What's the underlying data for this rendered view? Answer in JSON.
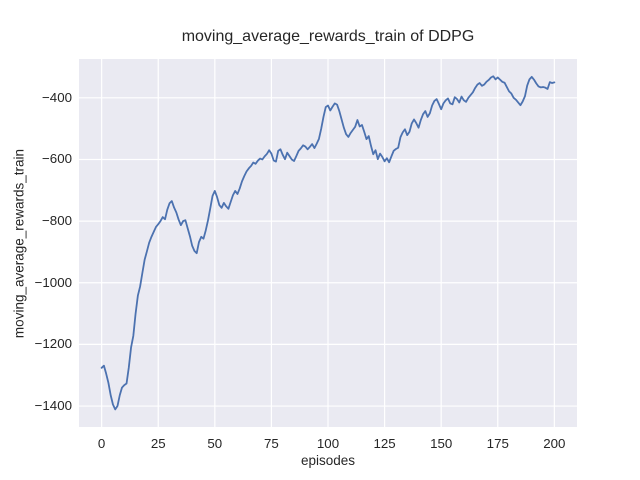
{
  "chart_data": {
    "type": "line",
    "title": "moving_average_rewards_train of DDPG",
    "xlabel": "episodes",
    "ylabel": "moving_average_rewards_train",
    "x_ticks": [
      0,
      25,
      50,
      75,
      100,
      125,
      150,
      175,
      200
    ],
    "y_ticks": [
      -400,
      -600,
      -800,
      -1000,
      -1200,
      -1400
    ],
    "xlim": [
      -10,
      210
    ],
    "ylim": [
      -1468,
      -274
    ],
    "grid": true,
    "legend": "none",
    "colors": {
      "line": "#4c72b0",
      "axes_background": "#eaeaf2",
      "grid": "#ffffff",
      "text": "#262626",
      "figure_background": "#ffffff"
    },
    "series": [
      {
        "name": "moving_average_rewards_train",
        "x_start": 0,
        "x_step": 1,
        "values": [
          -1276,
          -1269,
          -1295,
          -1325,
          -1365,
          -1395,
          -1411,
          -1400,
          -1365,
          -1340,
          -1332,
          -1327,
          -1275,
          -1210,
          -1172,
          -1100,
          -1042,
          -1012,
          -968,
          -925,
          -898,
          -870,
          -851,
          -835,
          -819,
          -810,
          -800,
          -787,
          -794,
          -763,
          -742,
          -735,
          -756,
          -772,
          -795,
          -813,
          -800,
          -797,
          -823,
          -849,
          -880,
          -897,
          -904,
          -868,
          -851,
          -857,
          -830,
          -797,
          -758,
          -718,
          -702,
          -722,
          -748,
          -757,
          -741,
          -752,
          -760,
          -738,
          -716,
          -702,
          -712,
          -694,
          -671,
          -654,
          -639,
          -629,
          -621,
          -610,
          -614,
          -604,
          -597,
          -600,
          -590,
          -582,
          -570,
          -581,
          -603,
          -607,
          -572,
          -567,
          -585,
          -599,
          -578,
          -589,
          -600,
          -605,
          -589,
          -572,
          -564,
          -554,
          -558,
          -567,
          -559,
          -550,
          -563,
          -549,
          -533,
          -500,
          -462,
          -430,
          -425,
          -441,
          -429,
          -418,
          -422,
          -443,
          -470,
          -497,
          -518,
          -527,
          -514,
          -504,
          -494,
          -472,
          -493,
          -488,
          -510,
          -534,
          -524,
          -556,
          -583,
          -570,
          -599,
          -581,
          -592,
          -606,
          -596,
          -609,
          -590,
          -572,
          -566,
          -562,
          -528,
          -512,
          -502,
          -521,
          -510,
          -483,
          -470,
          -482,
          -497,
          -472,
          -453,
          -443,
          -462,
          -450,
          -425,
          -410,
          -404,
          -420,
          -437,
          -418,
          -408,
          -402,
          -418,
          -421,
          -398,
          -404,
          -415,
          -396,
          -408,
          -413,
          -400,
          -391,
          -382,
          -368,
          -357,
          -352,
          -361,
          -357,
          -348,
          -342,
          -334,
          -330,
          -340,
          -334,
          -341,
          -348,
          -351,
          -365,
          -379,
          -386,
          -400,
          -406,
          -415,
          -424,
          -412,
          -395,
          -360,
          -340,
          -332,
          -341,
          -353,
          -363,
          -366,
          -365,
          -367,
          -371,
          -349,
          -352,
          -350
        ]
      }
    ]
  }
}
